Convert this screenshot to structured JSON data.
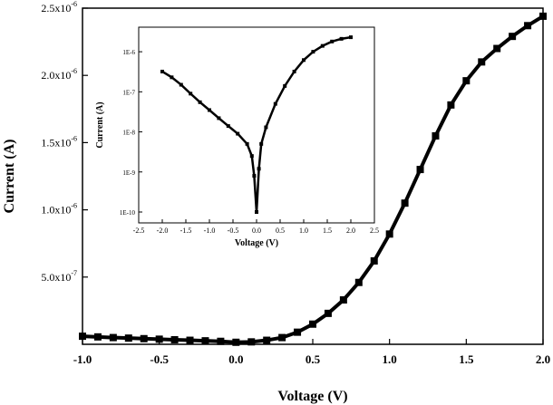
{
  "chart_data": [
    {
      "type": "line",
      "xlabel": "Voltage (V)",
      "ylabel": "Current (A)",
      "xlim": [
        -1.0,
        2.0
      ],
      "ylim": [
        0,
        2.5e-06
      ],
      "grid": false,
      "x_ticks": [
        -1.0,
        -0.5,
        0.0,
        0.5,
        1.0,
        1.5,
        2.0
      ],
      "x_tick_labels": [
        "-1.0",
        "-0.5",
        "0.0",
        "0.5",
        "1.0",
        "1.5",
        "2.0"
      ],
      "y_ticks": [
        5e-07,
        1e-06,
        1.5e-06,
        2e-06,
        2.5e-06
      ],
      "y_tick_labels": [
        {
          "mantissa": "5.0x10",
          "exp": "-7"
        },
        {
          "mantissa": "1.0x10",
          "exp": "-6"
        },
        {
          "mantissa": "1.5x10",
          "exp": "-6"
        },
        {
          "mantissa": "2.0x10",
          "exp": "-6"
        },
        {
          "mantissa": "2.5x10",
          "exp": "-6"
        }
      ],
      "series": [
        {
          "color": "#000000",
          "marker": "square",
          "x": [
            -1.0,
            -0.9,
            -0.8,
            -0.7,
            -0.6,
            -0.5,
            -0.4,
            -0.3,
            -0.2,
            -0.1,
            0.0,
            0.1,
            0.2,
            0.3,
            0.4,
            0.5,
            0.6,
            0.7,
            0.8,
            0.9,
            1.0,
            1.1,
            1.2,
            1.3,
            1.4,
            1.5,
            1.6,
            1.7,
            1.8,
            1.9,
            2.0
          ],
          "y": [
            6e-08,
            5.5e-08,
            5e-08,
            4.6e-08,
            4.2e-08,
            3.8e-08,
            3.4e-08,
            3e-08,
            2.6e-08,
            2.2e-08,
            1.5e-08,
            1.8e-08,
            3e-08,
            5e-08,
            9e-08,
            1.5e-07,
            2.3e-07,
            3.3e-07,
            4.6e-07,
            6.2e-07,
            8.2e-07,
            1.05e-06,
            1.3e-06,
            1.55e-06,
            1.78e-06,
            1.96e-06,
            2.1e-06,
            2.2e-06,
            2.29e-06,
            2.37e-06,
            2.44e-06
          ]
        }
      ]
    },
    {
      "type": "line",
      "scale_y": "log",
      "xlabel": "Voltage (V)",
      "ylabel": "Current (A)",
      "xlim": [
        -2.5,
        2.5
      ],
      "ylim": [
        1e-10,
        3e-06
      ],
      "x_ticks": [
        -2.5,
        -2.0,
        -1.5,
        -1.0,
        -0.5,
        0.0,
        0.5,
        1.0,
        1.5,
        2.0,
        2.5
      ],
      "x_tick_labels": [
        "-2.5",
        "-2.0",
        "-1.5",
        "-1.0",
        "-0.5",
        "0.0",
        "0.5",
        "1.0",
        "1.5",
        "2.0",
        "2.5"
      ],
      "y_ticks": [
        1e-10,
        1e-09,
        1e-08,
        1e-07,
        1e-06
      ],
      "y_tick_labels": [
        "1E-10",
        "1E-9",
        "1E-8",
        "1E-7",
        "1E-6"
      ],
      "series": [
        {
          "color": "#000000",
          "marker": "square",
          "x": [
            -2.0,
            -1.8,
            -1.6,
            -1.4,
            -1.2,
            -1.0,
            -0.8,
            -0.6,
            -0.4,
            -0.2,
            -0.1,
            -0.05,
            0.0,
            0.05,
            0.1,
            0.2,
            0.4,
            0.6,
            0.8,
            1.0,
            1.2,
            1.4,
            1.6,
            1.8,
            2.0
          ],
          "y": [
            3.2e-07,
            2.3e-07,
            1.5e-07,
            9e-08,
            5.5e-08,
            3.5e-08,
            2.2e-08,
            1.4e-08,
            9e-09,
            5e-09,
            2.5e-09,
            8e-10,
            1e-10,
            1.2e-09,
            5e-09,
            1.3e-08,
            5e-08,
            1.4e-07,
            3.2e-07,
            6.2e-07,
            1e-06,
            1.4e-06,
            1.8e-06,
            2.1e-06,
            2.3e-06
          ]
        }
      ]
    }
  ]
}
